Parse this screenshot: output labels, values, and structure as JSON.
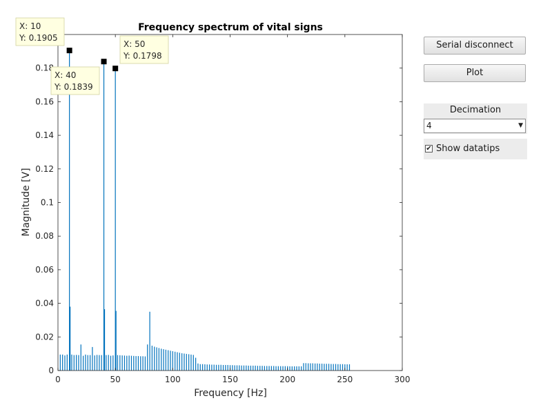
{
  "controls": {
    "serial_button": "Serial disconnect",
    "plot_button": "Plot",
    "decimation_label": "Decimation",
    "decimation_value": "4",
    "show_datatips_label": "Show datatips",
    "show_datatips_checked": true
  },
  "chart_data": {
    "type": "bar",
    "title": "Frequency spectrum of vital signs",
    "xlabel": "Frequency [Hz]",
    "ylabel": "Magnitude [V]",
    "xlim": [
      0,
      300
    ],
    "ylim": [
      0,
      0.2
    ],
    "xticks": [
      0,
      50,
      100,
      150,
      200,
      250,
      300
    ],
    "yticks": [
      "0",
      "0.02",
      "0.04",
      "0.06",
      "0.08",
      "0.1",
      "0.12",
      "0.14",
      "0.16",
      "0.18"
    ],
    "bar_color": "#0072bd",
    "grid": false,
    "series": [
      {
        "x": [
          2,
          4,
          6,
          8,
          10,
          12,
          14,
          16,
          18,
          20,
          22,
          24,
          26,
          28,
          30,
          32,
          34,
          36,
          38,
          40,
          42,
          44,
          46,
          48,
          50,
          52,
          54,
          56,
          58,
          60,
          62,
          64,
          66,
          68,
          70,
          72,
          74,
          76,
          78,
          80,
          82,
          84,
          86,
          88,
          90,
          92,
          94,
          96,
          98,
          100,
          102,
          104,
          106,
          108,
          110,
          112,
          114,
          116,
          118,
          120,
          122,
          124,
          126,
          128,
          130,
          132,
          134,
          136,
          138,
          140,
          142,
          144,
          146,
          148,
          150,
          152,
          154,
          156,
          158,
          160,
          162,
          164,
          166,
          168,
          170,
          172,
          174,
          176,
          178,
          180,
          182,
          184,
          186,
          188,
          190,
          192,
          194,
          196,
          198,
          200,
          202,
          204,
          206,
          208,
          210,
          212,
          214,
          216,
          218,
          220,
          222,
          224,
          226,
          228,
          230,
          232,
          234,
          236,
          238,
          240,
          242,
          244,
          246,
          248,
          250,
          252,
          254
        ],
        "y": [
          0.0095,
          0.0095,
          0.009,
          0.0095,
          0.1905,
          0.0095,
          0.0092,
          0.0093,
          0.0092,
          0.0155,
          0.0088,
          0.0095,
          0.0092,
          0.0092,
          0.014,
          0.009,
          0.0093,
          0.0092,
          0.0092,
          0.1839,
          0.0092,
          0.0093,
          0.0088,
          0.009,
          0.1798,
          0.0092,
          0.0091,
          0.009,
          0.0089,
          0.0088,
          0.0089,
          0.0088,
          0.0087,
          0.0086,
          0.0086,
          0.0085,
          0.0085,
          0.0084,
          0.0155,
          0.035,
          0.0148,
          0.0142,
          0.0138,
          0.0134,
          0.013,
          0.0127,
          0.0124,
          0.0121,
          0.0118,
          0.0115,
          0.0112,
          0.0109,
          0.0106,
          0.0103,
          0.0101,
          0.0099,
          0.0097,
          0.0095,
          0.0093,
          0.0076,
          0.0042,
          0.0038,
          0.0038,
          0.0037,
          0.0036,
          0.0036,
          0.0035,
          0.0035,
          0.0034,
          0.0034,
          0.0034,
          0.0033,
          0.0033,
          0.0033,
          0.0032,
          0.0032,
          0.0031,
          0.0031,
          0.0031,
          0.003,
          0.003,
          0.003,
          0.0029,
          0.0029,
          0.0029,
          0.0029,
          0.0028,
          0.0028,
          0.0028,
          0.0027,
          0.0027,
          0.0027,
          0.0027,
          0.0027,
          0.0026,
          0.0026,
          0.0026,
          0.0026,
          0.0026,
          0.0026,
          0.0025,
          0.0025,
          0.0025,
          0.0025,
          0.0025,
          0.0025,
          0.0044,
          0.0044,
          0.0043,
          0.0043,
          0.0043,
          0.0042,
          0.0042,
          0.0041,
          0.0041,
          0.004,
          0.004,
          0.004,
          0.0039,
          0.0039,
          0.0039,
          0.0038,
          0.0038,
          0.0038,
          0.0037,
          0.0037,
          0.0037
        ]
      }
    ],
    "secondary_peaks": [
      {
        "x": 10,
        "y": 0.038
      },
      {
        "x": 40,
        "y": 0.0365
      },
      {
        "x": 50,
        "y": 0.0355
      }
    ],
    "datatips": [
      {
        "x": 10,
        "y": 0.1905,
        "label_x": "X: 10",
        "label_y": "Y: 0.1905"
      },
      {
        "x": 40,
        "y": 0.1839,
        "label_x": "X: 40",
        "label_y": "Y: 0.1839"
      },
      {
        "x": 50,
        "y": 0.1798,
        "label_x": "X: 50",
        "label_y": "Y: 0.1798"
      }
    ]
  }
}
